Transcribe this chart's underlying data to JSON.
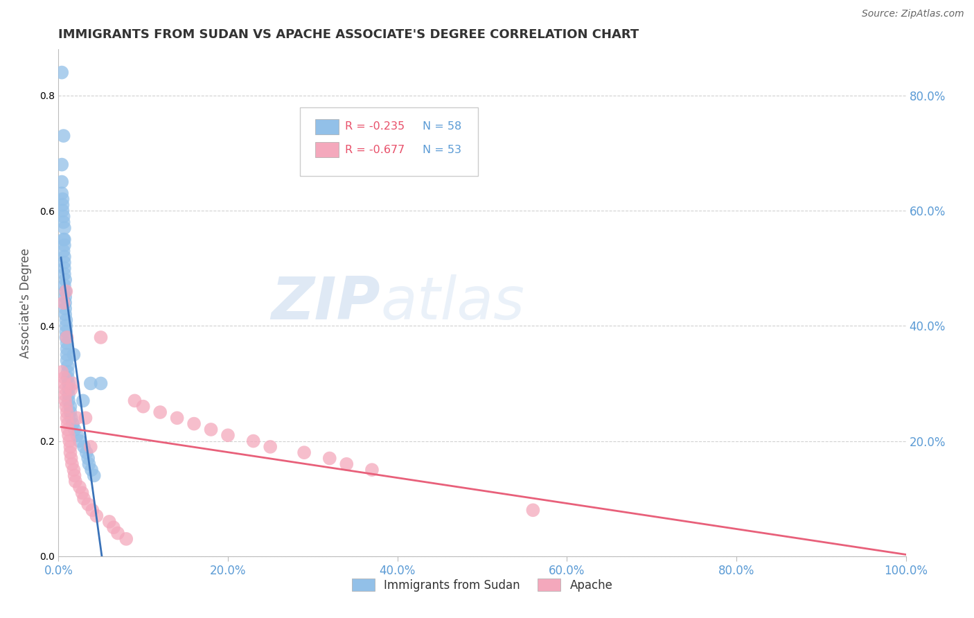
{
  "title": "IMMIGRANTS FROM SUDAN VS APACHE ASSOCIATE'S DEGREE CORRELATION CHART",
  "source": "Source: ZipAtlas.com",
  "ylabel_label": "Associate's Degree",
  "legend_blue_r": "R = -0.235",
  "legend_blue_n": "N = 58",
  "legend_pink_r": "R = -0.677",
  "legend_pink_n": "N = 53",
  "blue_color": "#92C0E8",
  "pink_color": "#F4A8BC",
  "blue_line_color": "#3A72B8",
  "pink_line_color": "#E8607A",
  "title_color": "#333333",
  "tick_color": "#5B9BD5",
  "grid_color": "#CCCCCC",
  "watermark_zip": "ZIP",
  "watermark_atlas": "atlas",
  "blue_x": [
    0.004,
    0.006,
    0.004,
    0.004,
    0.004,
    0.005,
    0.005,
    0.005,
    0.006,
    0.006,
    0.007,
    0.006,
    0.007,
    0.007,
    0.006,
    0.007,
    0.007,
    0.007,
    0.007,
    0.008,
    0.007,
    0.008,
    0.008,
    0.008,
    0.008,
    0.008,
    0.009,
    0.009,
    0.009,
    0.009,
    0.01,
    0.01,
    0.01,
    0.01,
    0.011,
    0.011,
    0.011,
    0.012,
    0.012,
    0.012,
    0.012,
    0.014,
    0.014,
    0.015,
    0.017,
    0.018,
    0.019,
    0.022,
    0.025,
    0.029,
    0.03,
    0.033,
    0.035,
    0.036,
    0.038,
    0.039,
    0.042,
    0.05
  ],
  "blue_y": [
    0.84,
    0.73,
    0.68,
    0.65,
    0.63,
    0.62,
    0.61,
    0.6,
    0.59,
    0.58,
    0.57,
    0.55,
    0.55,
    0.54,
    0.53,
    0.52,
    0.51,
    0.5,
    0.49,
    0.48,
    0.47,
    0.46,
    0.45,
    0.44,
    0.43,
    0.42,
    0.41,
    0.4,
    0.39,
    0.38,
    0.37,
    0.36,
    0.35,
    0.34,
    0.33,
    0.32,
    0.31,
    0.3,
    0.29,
    0.28,
    0.27,
    0.26,
    0.25,
    0.24,
    0.23,
    0.35,
    0.22,
    0.21,
    0.2,
    0.27,
    0.19,
    0.18,
    0.17,
    0.16,
    0.3,
    0.15,
    0.14,
    0.3
  ],
  "pink_x": [
    0.004,
    0.006,
    0.007,
    0.007,
    0.008,
    0.008,
    0.008,
    0.009,
    0.009,
    0.01,
    0.01,
    0.01,
    0.011,
    0.011,
    0.012,
    0.013,
    0.014,
    0.014,
    0.015,
    0.015,
    0.016,
    0.017,
    0.018,
    0.019,
    0.02,
    0.022,
    0.025,
    0.028,
    0.03,
    0.032,
    0.035,
    0.038,
    0.04,
    0.045,
    0.05,
    0.06,
    0.065,
    0.07,
    0.08,
    0.09,
    0.1,
    0.12,
    0.14,
    0.16,
    0.18,
    0.2,
    0.23,
    0.25,
    0.29,
    0.32,
    0.34,
    0.37,
    0.56
  ],
  "pink_y": [
    0.32,
    0.44,
    0.31,
    0.3,
    0.29,
    0.28,
    0.27,
    0.26,
    0.46,
    0.25,
    0.24,
    0.38,
    0.23,
    0.22,
    0.21,
    0.2,
    0.19,
    0.18,
    0.29,
    0.17,
    0.16,
    0.3,
    0.15,
    0.14,
    0.13,
    0.24,
    0.12,
    0.11,
    0.1,
    0.24,
    0.09,
    0.19,
    0.08,
    0.07,
    0.38,
    0.06,
    0.05,
    0.04,
    0.03,
    0.27,
    0.26,
    0.25,
    0.24,
    0.23,
    0.22,
    0.21,
    0.2,
    0.19,
    0.18,
    0.17,
    0.16,
    0.15,
    0.08
  ],
  "xlim": [
    0.0,
    1.0
  ],
  "ylim": [
    0.0,
    0.88
  ],
  "xticks": [
    0.0,
    0.2,
    0.4,
    0.6,
    0.8,
    1.0
  ],
  "yticks": [
    0.0,
    0.2,
    0.4,
    0.6,
    0.8
  ],
  "xticklabels": [
    "0.0%",
    "20.0%",
    "40.0%",
    "60.0%",
    "80.0%",
    "100.0%"
  ],
  "yticklabels": [
    "",
    "20.0%",
    "40.0%",
    "60.0%",
    "80.0%"
  ]
}
